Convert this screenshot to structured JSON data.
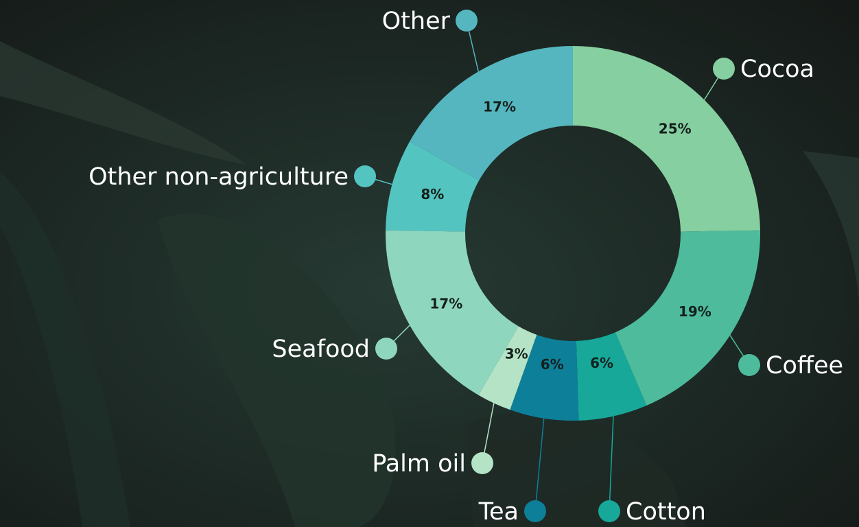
{
  "chart_data": {
    "type": "donut",
    "categories": [
      "Cocoa",
      "Coffee",
      "Cotton",
      "Tea",
      "Palm oil",
      "Seafood",
      "Other non-agriculture",
      "Other"
    ],
    "values": [
      25,
      19,
      6,
      6,
      3,
      17,
      8,
      17
    ],
    "value_labels": [
      "25%",
      "19%",
      "6%",
      "6%",
      "3%",
      "17%",
      "8%",
      "17%"
    ],
    "colors": [
      "#86cfa0",
      "#4dbb9c",
      "#17a89a",
      "#0d7f99",
      "#b5e3c6",
      "#8fd6bf",
      "#53c4c0",
      "#55b6bf"
    ]
  }
}
